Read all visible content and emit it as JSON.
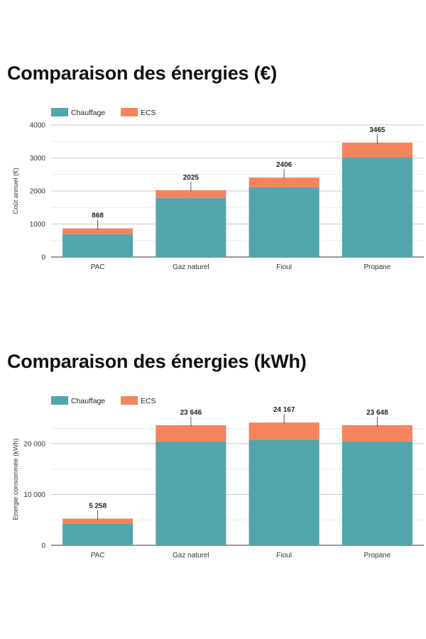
{
  "colors": {
    "chauffage": "#52a5ab",
    "ecs": "#f4845c"
  },
  "sections": [
    {
      "title": "Comparaison des énergies (€)"
    },
    {
      "title": "Comparaison des énergies (kWh)"
    }
  ],
  "chart_data": [
    {
      "type": "bar",
      "stacked": true,
      "title": "Comparaison des énergies (€)",
      "xlabel": "",
      "ylabel": "Coût annuel (€)",
      "categories": [
        "PAC",
        "Gaz naturel",
        "Fioul",
        "Propane"
      ],
      "series": [
        {
          "name": "Chauffage",
          "values": [
            690,
            1790,
            2110,
            3020
          ]
        },
        {
          "name": "ECS",
          "values": [
            178,
            235,
            296,
            445
          ]
        }
      ],
      "totals": [
        868,
        2025,
        2406,
        3465
      ],
      "total_labels": [
        "868",
        "2025",
        "2406",
        "3465"
      ],
      "ylim": [
        0,
        4000
      ],
      "yticks": [
        0,
        1000,
        2000,
        3000,
        4000
      ],
      "ytick_labels": [
        "0",
        "1000",
        "2000",
        "3000",
        "4000"
      ],
      "legend": "top-left",
      "grid": true
    },
    {
      "type": "bar",
      "stacked": true,
      "title": "Comparaison des énergies (kWh)",
      "xlabel": "",
      "ylabel": "Energie consommée (kWh)",
      "categories": [
        "PAC",
        "Gaz naturel",
        "Fioul",
        "Propane"
      ],
      "series": [
        {
          "name": "Chauffage",
          "values": [
            4200,
            20400,
            20800,
            20400
          ]
        },
        {
          "name": "ECS",
          "values": [
            1058,
            3246,
            3367,
            3248
          ]
        }
      ],
      "totals": [
        5258,
        23646,
        24167,
        23648
      ],
      "total_labels": [
        "5 258",
        "23 646",
        "24 167",
        "23 648"
      ],
      "ylim": [
        0,
        26000
      ],
      "yticks": [
        0,
        10000,
        20000
      ],
      "ytick_labels": [
        "0",
        "10 000",
        "20 000"
      ],
      "legend": "top-left",
      "grid": true
    }
  ]
}
